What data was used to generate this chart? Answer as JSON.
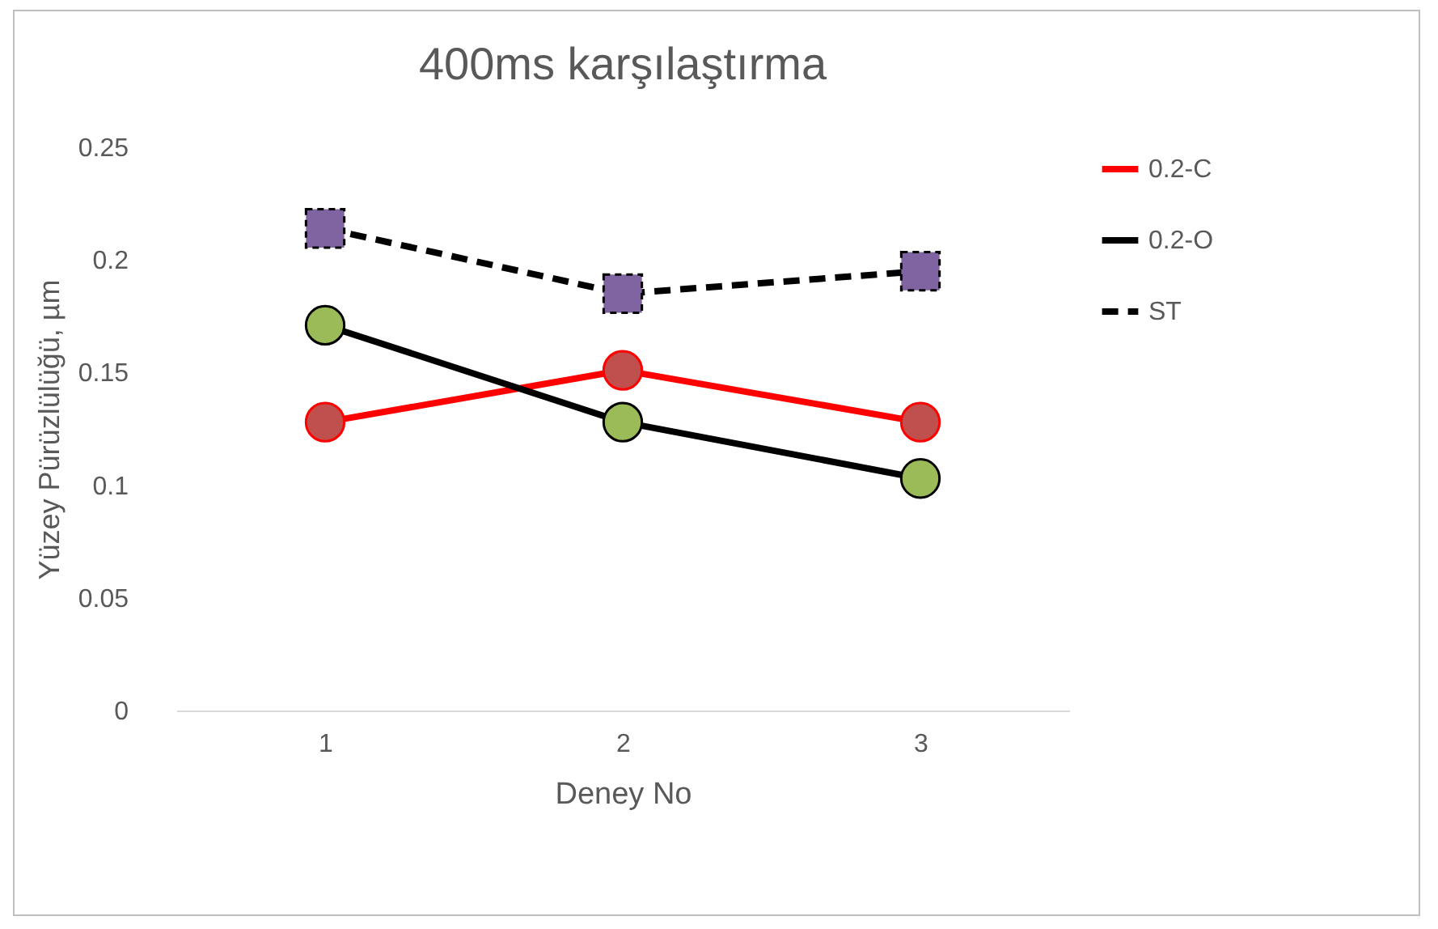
{
  "chart_data": {
    "type": "line",
    "title": "400ms karşılaştırma",
    "xlabel": "Deney No",
    "ylabel": "Yüzey Pürüzlülüğü, µm",
    "categories": [
      "1",
      "2",
      "3"
    ],
    "series": [
      {
        "name": "0.2-C",
        "color": "#ff0000",
        "colors": [
          "#c0504d",
          "#c0504d",
          "#c0504d"
        ],
        "marker": "circle",
        "line_style": "solid",
        "values": [
          0.128,
          0.151,
          0.128
        ]
      },
      {
        "name": "0.2-O",
        "color": "#000000",
        "colors": [
          "#9bbb59",
          "#9bbb59",
          "#9bbb59"
        ],
        "marker": "circle",
        "line_style": "solid",
        "values": [
          0.171,
          0.128,
          0.103
        ]
      },
      {
        "name": "ST",
        "color": "#000000",
        "colors": [
          "#8064a2",
          "#8064a2",
          "#8064a2"
        ],
        "marker": "square",
        "line_style": "dashed",
        "values": [
          0.214,
          0.185,
          0.195
        ]
      }
    ],
    "ylim": [
      0,
      0.25
    ],
    "yticks": [
      0,
      0.05,
      0.1,
      0.15,
      0.2,
      0.25
    ],
    "grid": false,
    "legend": "right"
  }
}
